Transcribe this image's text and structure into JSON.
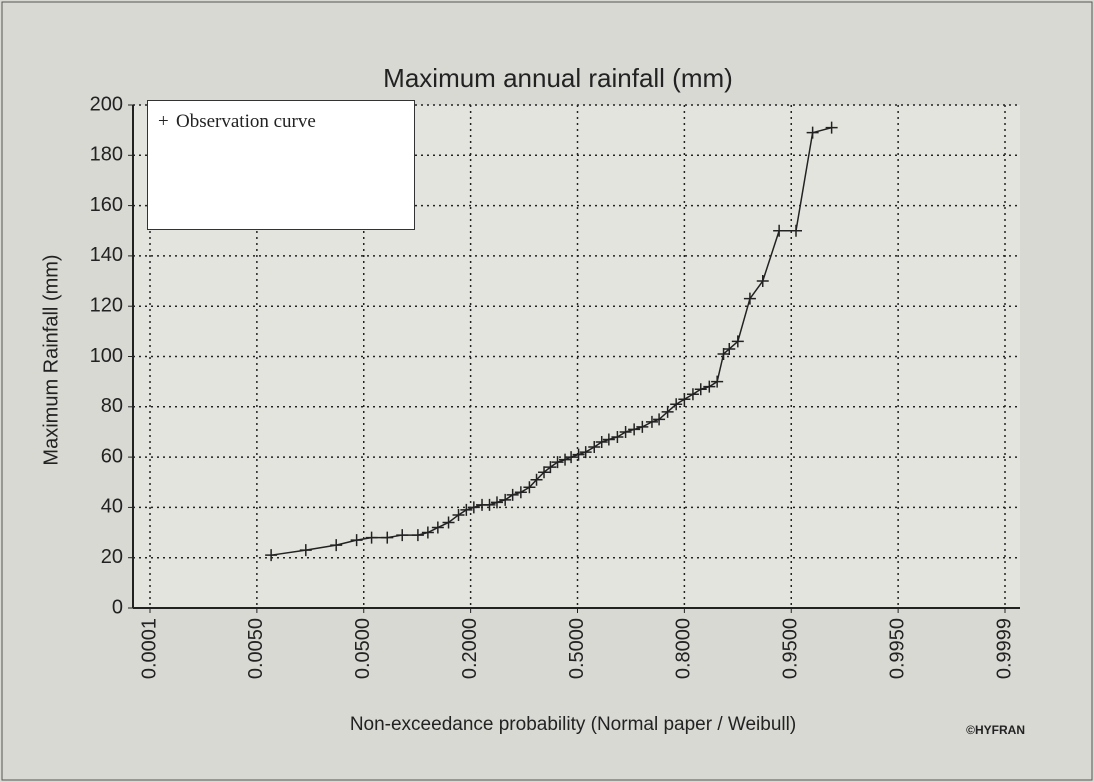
{
  "chart_data": {
    "type": "line",
    "title": "Maximum annual rainfall (mm)",
    "xlabel": "Non-exceedance probability (Normal paper / Weibull)",
    "ylabel": "Maximum Rainfall (mm)",
    "annotation": "©HYFRAN",
    "xscale": "probability",
    "marker": "+",
    "legend": "upper left",
    "grid": true,
    "x": [
      0.011,
      0.0256,
      0.0384,
      0.047,
      0.061,
      0.083,
      0.104,
      0.126,
      0.14,
      0.154,
      0.169,
      0.183,
      0.194,
      0.209,
      0.232,
      0.253,
      0.274,
      0.297,
      0.318,
      0.341,
      0.365,
      0.385,
      0.406,
      0.424,
      0.444,
      0.465,
      0.482,
      0.503,
      0.523,
      0.547,
      0.568,
      0.588,
      0.612,
      0.635,
      0.659,
      0.682,
      0.709,
      0.729,
      0.753,
      0.777,
      0.8,
      0.812,
      0.823,
      0.835,
      0.846,
      0.855,
      0.863,
      0.875,
      0.892,
      0.91,
      0.933,
      0.952,
      0.959,
      0.967
    ],
    "series": [
      {
        "name": "Observation curve",
        "color": "#222222",
        "values": [
          21,
          23,
          25,
          27,
          28,
          28,
          29,
          29,
          30,
          32,
          34,
          37,
          39,
          40,
          41,
          41,
          42,
          43,
          45,
          46,
          48,
          51,
          54,
          56,
          58,
          59,
          60,
          61,
          62,
          64,
          66,
          67,
          68,
          70,
          71,
          72,
          74,
          75,
          78,
          81,
          83,
          85,
          87,
          88,
          90,
          101,
          103,
          106,
          123,
          130,
          150,
          150,
          189,
          191
        ]
      }
    ],
    "xlim": [
      0.0001,
      0.9999
    ],
    "xticks": [
      0.0001,
      {
        "value": 0.005,
        "label": "0.0050"
      },
      {
        "value": 0.05,
        "label": "0.0500"
      },
      {
        "value": 0.2,
        "label": "0.2000"
      },
      {
        "value": 0.5,
        "label": "0.5000"
      },
      {
        "value": 0.8,
        "label": "0.8000"
      },
      {
        "value": 0.95,
        "label": "0.9500"
      },
      {
        "value": 0.995,
        "label": "0.9950"
      },
      0.9999
    ],
    "ylim": [
      0,
      200
    ],
    "yticks": [
      0,
      20,
      40,
      60,
      80,
      100,
      120,
      140,
      160,
      180,
      200
    ]
  }
}
